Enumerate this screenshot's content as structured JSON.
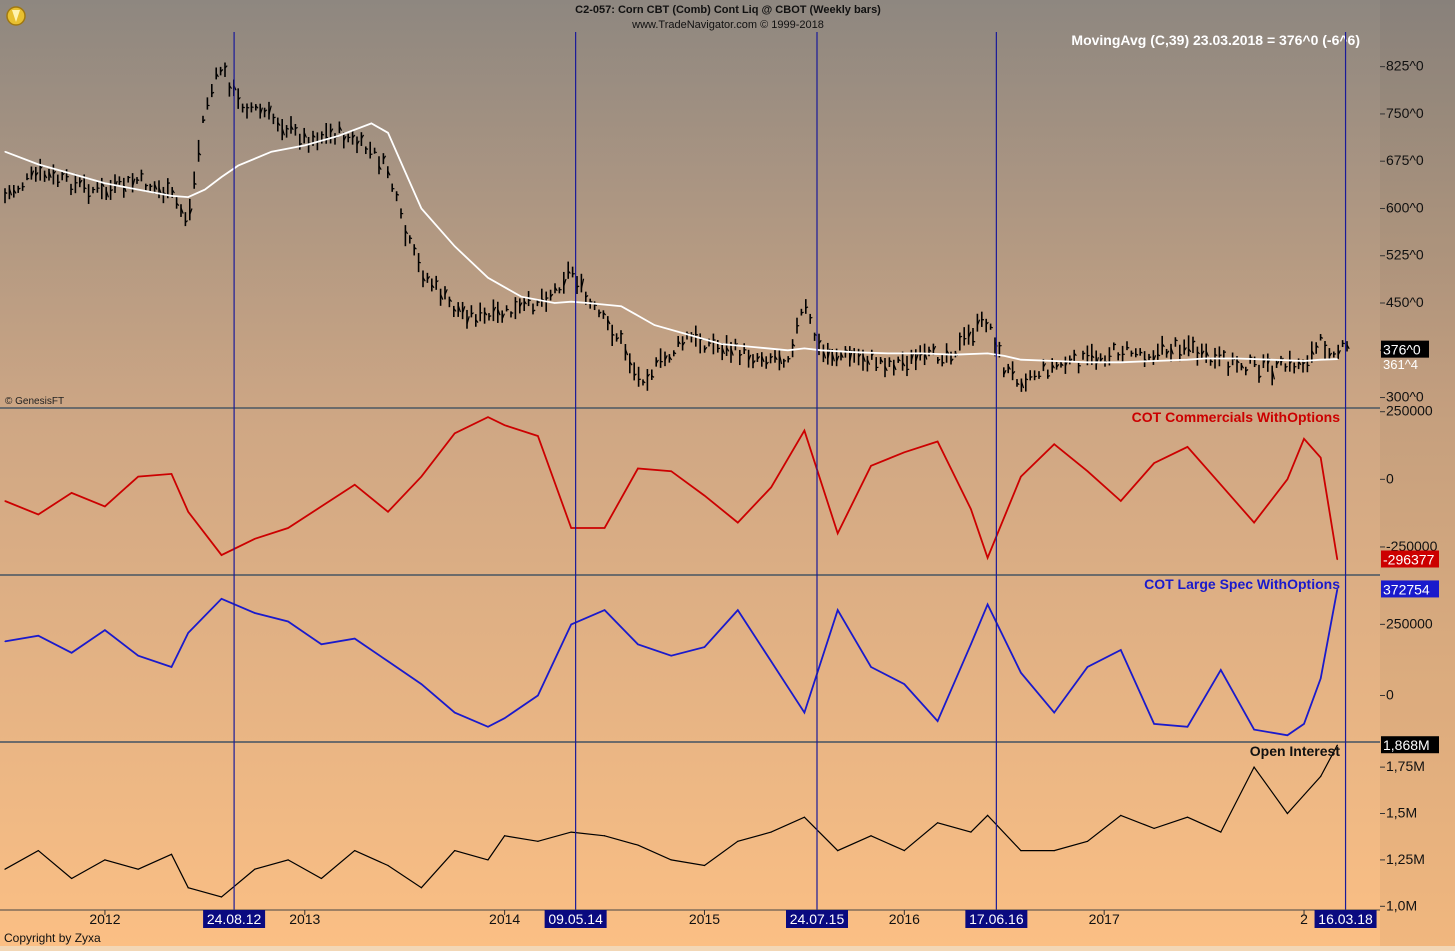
{
  "header": {
    "title": "C2-057:  Corn CBT (Comb) Cont Liq @ CBOT  (Weekly bars)",
    "subtitle": "www.TradeNavigator.com © 1999-2018"
  },
  "watermark": "© GenesisFT",
  "copyright": "Copyright by Zyxa",
  "logo_icon": "trade-navigator-logo-icon",
  "colors": {
    "price_bars": "#000000",
    "moving_avg": "#ffffff",
    "commercials": "#cc0000",
    "large_spec": "#1a1acc",
    "open_interest": "#000000",
    "vlines": "#1a1a99",
    "bg_top": "#8e8780",
    "bg_bottom": "#fbbf84"
  },
  "chart_data": [
    {
      "type": "line",
      "panel": "price",
      "legend": "MovingAvg (C,39)   23.03.2018 = 376^0 (-6^6)",
      "y_ticks": [
        "825^0",
        "750^0",
        "675^0",
        "600^0",
        "525^0",
        "450^0",
        "375^0",
        "300^0"
      ],
      "y_tick_values": [
        825,
        750,
        675,
        600,
        525,
        450,
        375,
        300
      ],
      "ylim": [
        285,
        880
      ],
      "last_price_label": "376^0",
      "last_ma_label": "361^4",
      "x": [
        "2011-07",
        "2011-09",
        "2011-11",
        "2012-01",
        "2012-03",
        "2012-05",
        "2012-06",
        "2012-07",
        "2012-08",
        "2012-09",
        "2012-11",
        "2013-01",
        "2013-03",
        "2013-05",
        "2013-06",
        "2013-07",
        "2013-08",
        "2013-10",
        "2013-12",
        "2014-02",
        "2014-04",
        "2014-05",
        "2014-06",
        "2014-08",
        "2014-09",
        "2014-10",
        "2014-12",
        "2015-02",
        "2015-04",
        "2015-06",
        "2015-07",
        "2015-08",
        "2015-10",
        "2015-12",
        "2016-02",
        "2016-04",
        "2016-06",
        "2016-07",
        "2016-08",
        "2016-10",
        "2016-12",
        "2017-02",
        "2017-04",
        "2017-06",
        "2017-07",
        "2017-09",
        "2017-11",
        "2018-01",
        "2018-02",
        "2018-03"
      ],
      "series": [
        {
          "name": "Close",
          "values": [
            620,
            655,
            640,
            625,
            645,
            620,
            580,
            760,
            825,
            770,
            745,
            710,
            720,
            690,
            660,
            560,
            500,
            440,
            425,
            440,
            470,
            505,
            450,
            390,
            330,
            345,
            395,
            380,
            365,
            365,
            445,
            370,
            365,
            355,
            360,
            375,
            425,
            345,
            330,
            350,
            360,
            375,
            370,
            385,
            360,
            355,
            345,
            355,
            385,
            376
          ]
        },
        {
          "name": "MovingAvg (C,39)",
          "values": [
            690,
            670,
            655,
            640,
            630,
            620,
            618,
            630,
            650,
            668,
            690,
            700,
            715,
            735,
            720,
            660,
            600,
            540,
            490,
            460,
            450,
            452,
            450,
            445,
            430,
            415,
            400,
            385,
            380,
            375,
            378,
            375,
            372,
            370,
            370,
            368,
            370,
            366,
            360,
            358,
            356,
            356,
            358,
            360,
            362,
            362,
            360,
            358,
            360,
            361
          ]
        }
      ]
    },
    {
      "type": "line",
      "panel": "commercials",
      "legend": "COT Commercials WithOptions",
      "y_ticks": [
        "250000",
        "0",
        "-250000"
      ],
      "y_tick_values": [
        250000,
        0,
        -250000
      ],
      "ylim": [
        -350000,
        260000
      ],
      "last_label": "-296377",
      "x": [
        "2011-07",
        "2011-09",
        "2011-11",
        "2012-01",
        "2012-03",
        "2012-05",
        "2012-06",
        "2012-08",
        "2012-10",
        "2012-12",
        "2013-02",
        "2013-04",
        "2013-06",
        "2013-08",
        "2013-10",
        "2013-12",
        "2014-01",
        "2014-03",
        "2014-05",
        "2014-07",
        "2014-09",
        "2014-11",
        "2015-01",
        "2015-03",
        "2015-05",
        "2015-07",
        "2015-09",
        "2015-11",
        "2016-01",
        "2016-03",
        "2016-05",
        "2016-06",
        "2016-08",
        "2016-10",
        "2016-12",
        "2017-02",
        "2017-04",
        "2017-06",
        "2017-08",
        "2017-10",
        "2017-12",
        "2018-01",
        "2018-02",
        "2018-03"
      ],
      "series": [
        {
          "name": "COT Commercials WithOptions",
          "values": [
            -80000,
            -130000,
            -50000,
            -100000,
            10000,
            20000,
            -120000,
            -280000,
            -220000,
            -180000,
            -100000,
            -20000,
            -120000,
            10000,
            170000,
            230000,
            200000,
            160000,
            -180000,
            -180000,
            40000,
            30000,
            -60000,
            -160000,
            -30000,
            180000,
            -200000,
            50000,
            100000,
            140000,
            -110000,
            -290000,
            10000,
            130000,
            30000,
            -80000,
            60000,
            120000,
            -20000,
            -160000,
            0,
            150000,
            80000,
            -296377
          ]
        }
      ]
    },
    {
      "type": "line",
      "panel": "large_spec",
      "legend": "COT Large Spec WithOptions",
      "y_ticks": [
        "250000",
        "0"
      ],
      "y_tick_values": [
        250000,
        0
      ],
      "ylim": [
        -160000,
        420000
      ],
      "last_label": "372754",
      "x": [
        "2011-07",
        "2011-09",
        "2011-11",
        "2012-01",
        "2012-03",
        "2012-05",
        "2012-06",
        "2012-08",
        "2012-10",
        "2012-12",
        "2013-02",
        "2013-04",
        "2013-06",
        "2013-08",
        "2013-10",
        "2013-12",
        "2014-01",
        "2014-03",
        "2014-05",
        "2014-07",
        "2014-09",
        "2014-11",
        "2015-01",
        "2015-03",
        "2015-05",
        "2015-07",
        "2015-09",
        "2015-11",
        "2016-01",
        "2016-03",
        "2016-05",
        "2016-06",
        "2016-08",
        "2016-10",
        "2016-12",
        "2017-02",
        "2017-04",
        "2017-06",
        "2017-08",
        "2017-10",
        "2017-12",
        "2018-01",
        "2018-02",
        "2018-03"
      ],
      "series": [
        {
          "name": "COT Large Spec WithOptions",
          "values": [
            190000,
            210000,
            150000,
            230000,
            140000,
            100000,
            220000,
            340000,
            290000,
            260000,
            180000,
            200000,
            120000,
            40000,
            -60000,
            -110000,
            -80000,
            0,
            250000,
            300000,
            180000,
            140000,
            170000,
            300000,
            120000,
            -60000,
            300000,
            100000,
            40000,
            -90000,
            180000,
            320000,
            80000,
            -60000,
            100000,
            160000,
            -100000,
            -110000,
            90000,
            -120000,
            -140000,
            -100000,
            60000,
            372754
          ]
        }
      ]
    },
    {
      "type": "line",
      "panel": "open_interest",
      "legend": "Open Interest",
      "y_ticks": [
        "1,75M",
        "1,5M",
        "1,25M",
        "1,0M"
      ],
      "y_tick_values": [
        1750000,
        1500000,
        1250000,
        1000000
      ],
      "ylim": [
        980000,
        1880000
      ],
      "last_label": "1,868M",
      "x": [
        "2011-07",
        "2011-09",
        "2011-11",
        "2012-01",
        "2012-03",
        "2012-05",
        "2012-06",
        "2012-08",
        "2012-10",
        "2012-12",
        "2013-02",
        "2013-04",
        "2013-06",
        "2013-08",
        "2013-10",
        "2013-12",
        "2014-01",
        "2014-03",
        "2014-05",
        "2014-07",
        "2014-09",
        "2014-11",
        "2015-01",
        "2015-03",
        "2015-05",
        "2015-07",
        "2015-09",
        "2015-11",
        "2016-01",
        "2016-03",
        "2016-05",
        "2016-06",
        "2016-08",
        "2016-10",
        "2016-12",
        "2017-02",
        "2017-04",
        "2017-06",
        "2017-08",
        "2017-10",
        "2017-12",
        "2018-01",
        "2018-02",
        "2018-03"
      ],
      "series": [
        {
          "name": "Open Interest",
          "values": [
            1200000,
            1300000,
            1150000,
            1250000,
            1200000,
            1280000,
            1100000,
            1050000,
            1200000,
            1250000,
            1150000,
            1300000,
            1220000,
            1100000,
            1300000,
            1250000,
            1380000,
            1350000,
            1400000,
            1380000,
            1330000,
            1250000,
            1220000,
            1350000,
            1400000,
            1480000,
            1300000,
            1380000,
            1300000,
            1450000,
            1400000,
            1490000,
            1300000,
            1300000,
            1350000,
            1490000,
            1420000,
            1480000,
            1400000,
            1750000,
            1500000,
            1600000,
            1700000,
            1868000
          ]
        }
      ]
    }
  ],
  "x_axis": {
    "year_labels": [
      "2012",
      "2013",
      "2014",
      "2015",
      "2016",
      "2017",
      "2"
    ],
    "year_dates": [
      "2012-01",
      "2013-01",
      "2014-01",
      "2015-01",
      "2016-01",
      "2017-01",
      "2018-01"
    ],
    "markers": [
      {
        "label": "24.08.12",
        "date": "2012-08-24"
      },
      {
        "label": "09.05.14",
        "date": "2014-05-09"
      },
      {
        "label": "24.07.15",
        "date": "2015-07-24"
      },
      {
        "label": "17.06.16",
        "date": "2016-06-17"
      },
      {
        "label": "16.03.18",
        "date": "2018-03-16"
      }
    ]
  }
}
